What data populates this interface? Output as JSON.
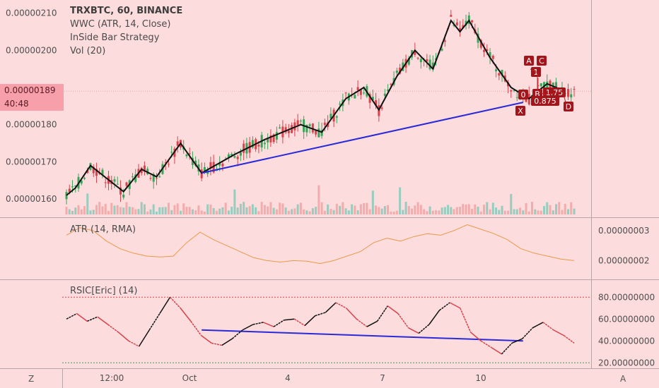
{
  "main_legend": {
    "title": "TRXBTC, 60, BINANCE",
    "line2": "WWC (ATR, 14, Close)",
    "line3": "InSide Bar Strategy",
    "line4": "Vol (20)"
  },
  "current_price": "0.00000189",
  "countdown": "40:48",
  "price_ticks": [
    "0.00000210",
    "0.00000200",
    "0.00000180",
    "0.00000170",
    "0.00000160"
  ],
  "atr_legend": "ATR (14, RMA)",
  "atr_ticks": [
    "0.00000003",
    "0.00000002"
  ],
  "rsi_legend": "RSIC[Eric] (14)",
  "rsi_ticks": [
    "80.00000000",
    "60.00000000",
    "40.00000000",
    "20.00000000"
  ],
  "time_ticks": [
    "12:00",
    "Oct",
    "4",
    "7",
    "10"
  ],
  "corner_left": "Z",
  "corner_right": "A",
  "pattern_labels": [
    "A",
    "C",
    "1",
    "B",
    "1.75",
    "0",
    "0.875",
    "X",
    "D"
  ],
  "colors": {
    "background": "#fcdcdc",
    "up": "#3aa35a",
    "down": "#d9434b",
    "zigzag": "#111111",
    "trendline": "#2a2ad6",
    "atr_line": "#e89a4a",
    "rsi_overbought": "#d9434b",
    "rsi_oversold": "#3aa35a",
    "pattern_badge": "#a3151a"
  },
  "chart_data": {
    "type": "candlestick",
    "symbol": "TRXBTC",
    "interval": "60",
    "exchange": "BINANCE",
    "y_range": [
      1.57e-06,
      2.12e-06
    ],
    "zigzag": [
      {
        "x": 0,
        "y": 1.61e-06
      },
      {
        "x": 3,
        "y": 1.63e-06
      },
      {
        "x": 8,
        "y": 1.69e-06
      },
      {
        "x": 19,
        "y": 1.62e-06
      },
      {
        "x": 25,
        "y": 1.68e-06
      },
      {
        "x": 30,
        "y": 1.66e-06
      },
      {
        "x": 38,
        "y": 1.75e-06
      },
      {
        "x": 45,
        "y": 1.67e-06
      },
      {
        "x": 56,
        "y": 1.72e-06
      },
      {
        "x": 66,
        "y": 1.76e-06
      },
      {
        "x": 78,
        "y": 1.8e-06
      },
      {
        "x": 85,
        "y": 1.78e-06
      },
      {
        "x": 93,
        "y": 1.87e-06
      },
      {
        "x": 99,
        "y": 1.9e-06
      },
      {
        "x": 104,
        "y": 1.84e-06
      },
      {
        "x": 110,
        "y": 1.93e-06
      },
      {
        "x": 116,
        "y": 2e-06
      },
      {
        "x": 122,
        "y": 1.95e-06
      },
      {
        "x": 128,
        "y": 2.08e-06
      },
      {
        "x": 131,
        "y": 2.05e-06
      },
      {
        "x": 134,
        "y": 2.08e-06
      },
      {
        "x": 141,
        "y": 1.98e-06
      },
      {
        "x": 148,
        "y": 1.9e-06
      },
      {
        "x": 154,
        "y": 1.87e-06
      },
      {
        "x": 160,
        "y": 1.91e-06
      },
      {
        "x": 166,
        "y": 1.89e-06
      }
    ],
    "trendlines": [
      {
        "pane": "price",
        "from": {
          "x": 45,
          "y": 1.67e-06
        },
        "to": {
          "x": 152,
          "y": 1.86e-06
        }
      },
      {
        "pane": "rsi",
        "from": {
          "x": 45,
          "y": 50
        },
        "to": {
          "x": 152,
          "y": 40
        }
      }
    ],
    "atr": {
      "y_range": [
        1.42e-08,
        3.4e-08
      ],
      "values": [
        2.85e-08,
        3.1e-08,
        3e-08,
        2.65e-08,
        2.4e-08,
        2.25e-08,
        2.15e-08,
        2.12e-08,
        2.15e-08,
        2.6e-08,
        2.95e-08,
        2.7e-08,
        2.5e-08,
        2.3e-08,
        2.1e-08,
        2e-08,
        1.95e-08,
        2e-08,
        1.98e-08,
        1.9e-08,
        2e-08,
        2.15e-08,
        2.3e-08,
        2.6e-08,
        2.75e-08,
        2.65e-08,
        2.8e-08,
        2.9e-08,
        2.85e-08,
        3e-08,
        3.2e-08,
        3.05e-08,
        2.9e-08,
        2.7e-08,
        2.4e-08,
        2.25e-08,
        2.15e-08,
        2.05e-08,
        2e-08
      ]
    },
    "rsi": {
      "y_range": [
        15,
        95
      ],
      "overbought": 80,
      "oversold": 20,
      "values": [
        60,
        65,
        58,
        62,
        55,
        48,
        40,
        35,
        50,
        65,
        80,
        70,
        58,
        45,
        38,
        36,
        42,
        50,
        55,
        57,
        53,
        59,
        60,
        54,
        63,
        66,
        75,
        70,
        60,
        53,
        58,
        72,
        65,
        52,
        47,
        55,
        68,
        75,
        70,
        48,
        40,
        34,
        28,
        38,
        42,
        52,
        57,
        50,
        45,
        38
      ]
    }
  }
}
